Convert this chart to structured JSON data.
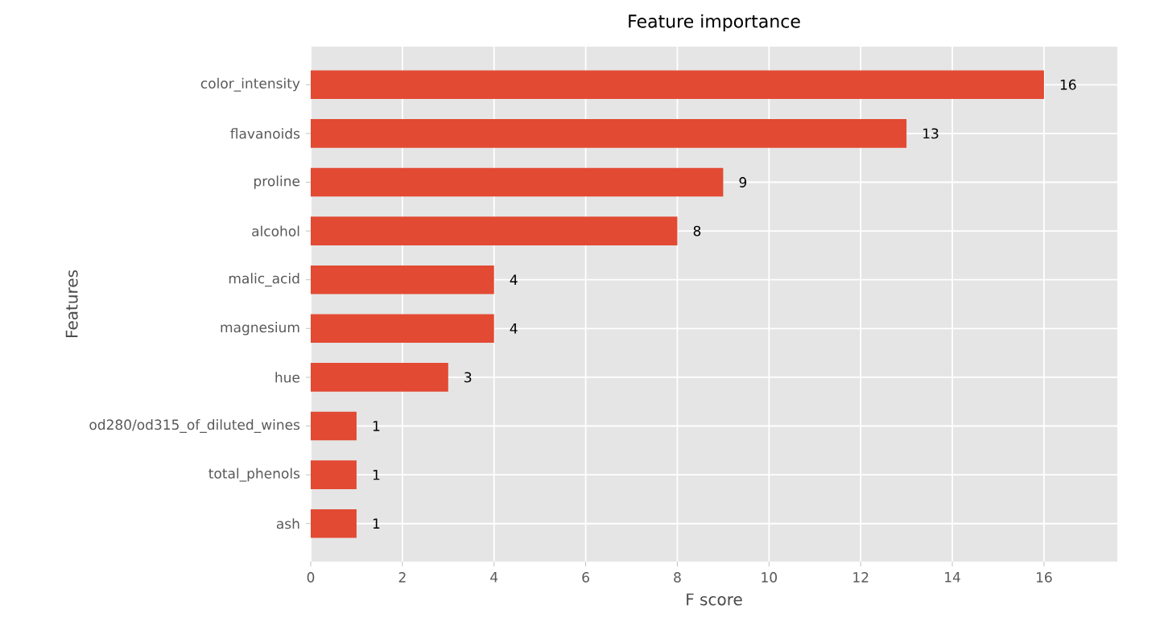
{
  "chart_data": {
    "type": "bar",
    "orientation": "horizontal",
    "title": "Feature importance",
    "xlabel": "F score",
    "ylabel": "Features",
    "categories": [
      "color_intensity",
      "flavanoids",
      "proline",
      "alcohol",
      "malic_acid",
      "magnesium",
      "hue",
      "od280/od315_of_diluted_wines",
      "total_phenols",
      "ash"
    ],
    "values": [
      16,
      13,
      9,
      8,
      4,
      4,
      3,
      1,
      1,
      1
    ],
    "color": "#e24a33",
    "xlim": [
      0,
      17.6
    ],
    "xticks": [
      0,
      2,
      4,
      6,
      8,
      10,
      12,
      14,
      16
    ],
    "grid": true,
    "data_labels": true
  }
}
